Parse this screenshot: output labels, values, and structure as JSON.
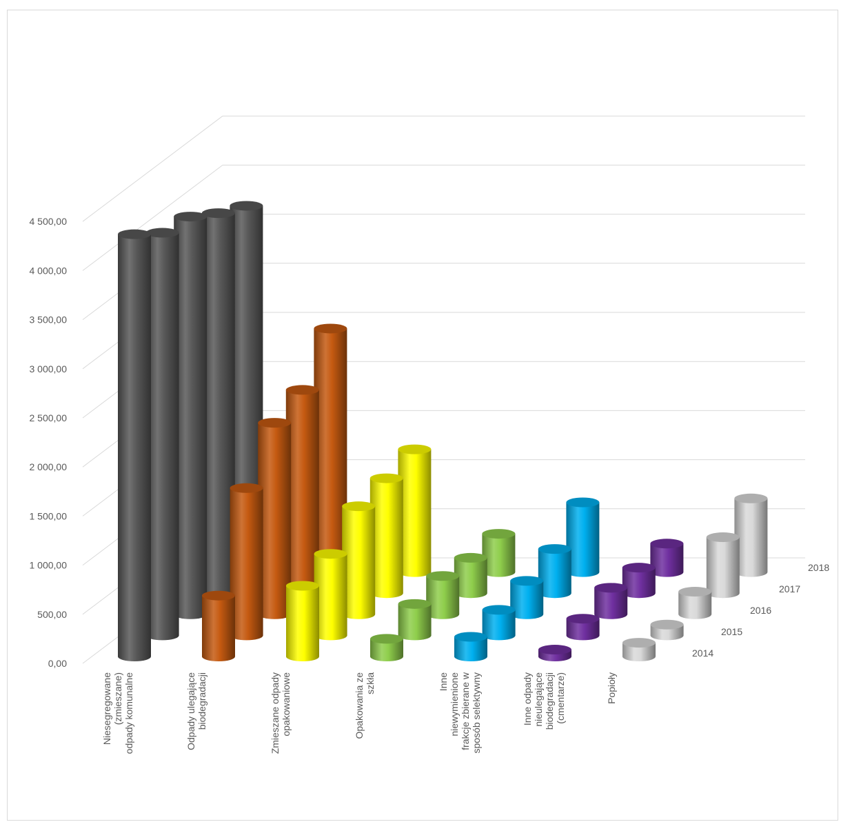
{
  "chart_data": {
    "type": "bar",
    "subtype": "3d-cylinder",
    "title": "",
    "xlabel": "",
    "ylabel": "",
    "ylim": [
      0,
      4500
    ],
    "y_ticks": [
      "0,00",
      "500,00",
      "1 000,00",
      "1 500,00",
      "2 000,00",
      "2 500,00",
      "3 000,00",
      "3 500,00",
      "4 000,00",
      "4 500,00"
    ],
    "categories": [
      [
        "Niesegregowane",
        "(zmieszane)",
        "odpady komunalne"
      ],
      [
        "Odpady ulegające",
        "biodegradacji"
      ],
      [
        "Zmieszane odpady",
        "opakowaniowe"
      ],
      [
        "Opakowania ze",
        "szkła"
      ],
      [
        "Inne",
        "niewymienione",
        "frakcje zbierane w",
        "sposób selektywny"
      ],
      [
        "Inne odpady",
        "nieulegające",
        "biodegradacji",
        "(cmentarze)"
      ],
      [
        "Popioły"
      ]
    ],
    "category_colors": [
      "#595959",
      "#c55a11",
      "#ffff00",
      "#8fce4c",
      "#00b0f0",
      "#7030a0",
      "#d9d9d9"
    ],
    "series": [
      {
        "name": "2014",
        "values": [
          4300,
          620,
          720,
          180,
          200,
          70,
          140
        ]
      },
      {
        "name": "2015",
        "values": [
          4100,
          1500,
          830,
          320,
          260,
          170,
          110
        ]
      },
      {
        "name": "2016",
        "values": [
          4050,
          1950,
          1100,
          390,
          340,
          270,
          230
        ]
      },
      {
        "name": "2017",
        "values": [
          3870,
          2070,
          1170,
          360,
          450,
          260,
          570
        ]
      },
      {
        "name": "2018",
        "values": [
          3730,
          2480,
          1250,
          390,
          710,
          290,
          750
        ]
      }
    ]
  }
}
